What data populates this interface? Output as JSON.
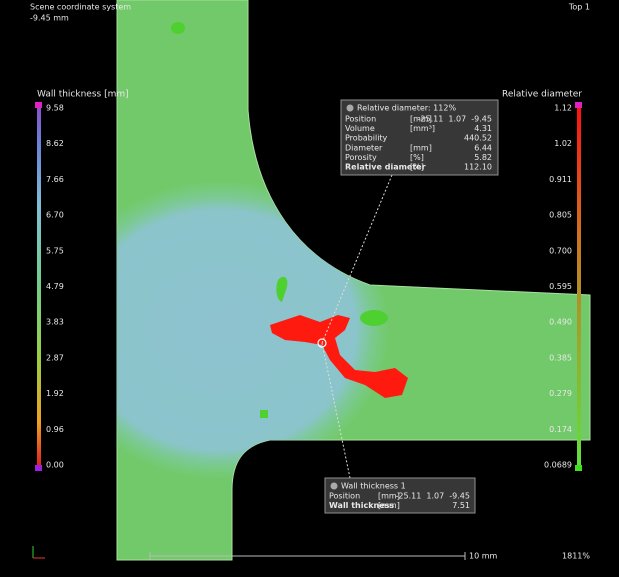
{
  "header": {
    "coordinate_system": "Scene coordinate system",
    "depth": "-9.45 mm",
    "view": "Top 1"
  },
  "left_legend": {
    "title": "Wall thickness [mm]",
    "labels": [
      "9.58",
      "8.62",
      "7.66",
      "6.70",
      "5.75",
      "4.79",
      "3.83",
      "2.87",
      "1.92",
      "0.96",
      "0.00"
    ]
  },
  "right_legend": {
    "title": "Relative diameter",
    "labels": [
      "1.12",
      "1.02",
      "0.911",
      "0.805",
      "0.700",
      "0.595",
      "0.490",
      "0.385",
      "0.279",
      "0.174",
      "0.0689"
    ]
  },
  "defect_box": {
    "title": "Relative diameter: 112%",
    "rows": [
      [
        "Position",
        "[mm]",
        "-25.11  1.07  -9.45"
      ],
      [
        "Volume",
        "[mm³]",
        "4.31"
      ],
      [
        "Probability",
        "",
        "440.52"
      ],
      [
        "Diameter",
        "[mm]",
        "6.44"
      ],
      [
        "Porosity",
        "[%]",
        "5.82"
      ],
      [
        "Relative diameter",
        "[%]",
        "112.10"
      ]
    ]
  },
  "thickness_box": {
    "title": "Wall thickness 1",
    "rows": [
      [
        "Position",
        "[mm]",
        "-25.11  1.07  -9.45"
      ],
      [
        "Wall thickness",
        "[mm]",
        "7.51"
      ]
    ]
  },
  "footer": {
    "scale": "10 mm",
    "zoom": "1811%"
  }
}
